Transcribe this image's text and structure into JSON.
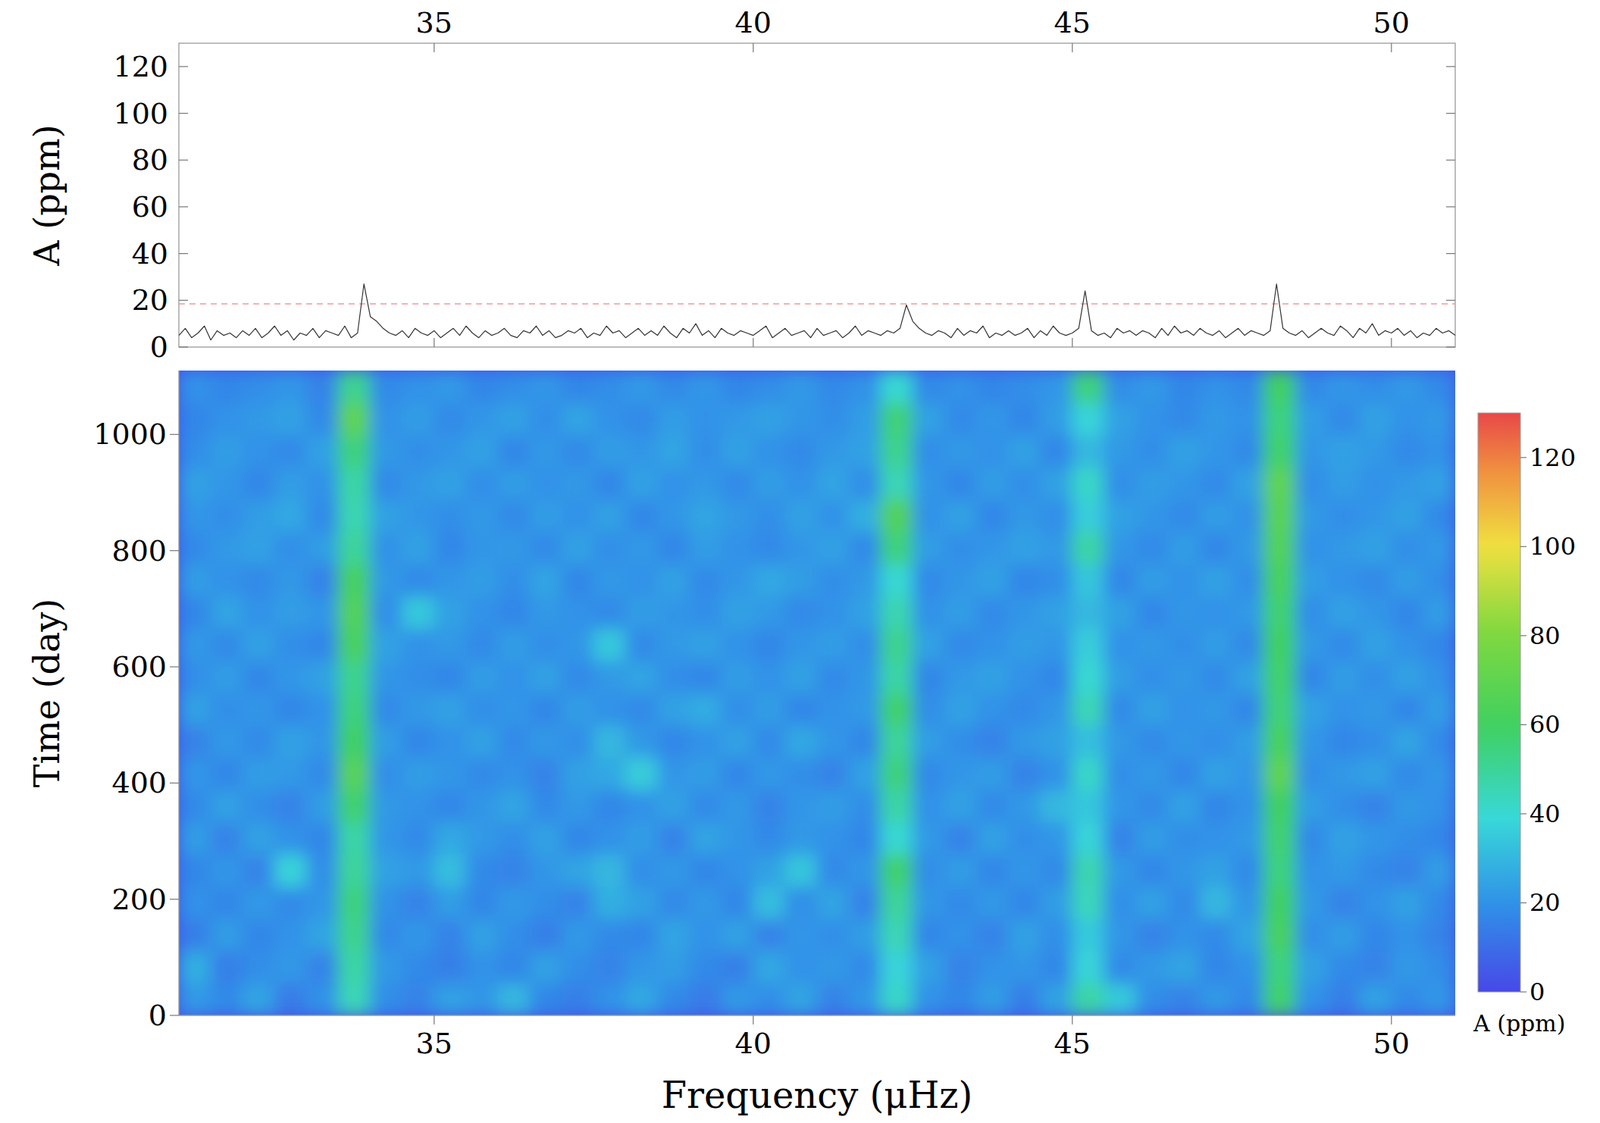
{
  "chart_data": [
    {
      "type": "line",
      "ylabel": "A (ppm)",
      "color": "#333333",
      "threshold": 18.5,
      "threshold_color": "#f09a9a",
      "line_style": "solid",
      "tick_labels": true,
      "xlim": [
        31,
        51
      ],
      "ylim": [
        0,
        130
      ],
      "xticks": [
        35,
        40,
        45,
        50
      ],
      "yticks": [
        0,
        20,
        40,
        60,
        80,
        100,
        120
      ],
      "x": [
        31,
        31.1,
        31.2,
        31.3,
        31.4,
        31.5,
        31.6,
        31.7,
        31.8,
        31.9,
        32,
        32.1,
        32.2,
        32.3,
        32.4,
        32.5,
        32.6,
        32.7,
        32.8,
        32.9,
        33,
        33.1,
        33.2,
        33.3,
        33.4,
        33.5,
        33.6,
        33.7,
        33.8,
        33.9,
        34,
        34.1,
        34.2,
        34.3,
        34.4,
        34.5,
        34.6,
        34.7,
        34.8,
        34.9,
        35,
        35.1,
        35.2,
        35.3,
        35.4,
        35.5,
        35.6,
        35.7,
        35.8,
        35.9,
        36,
        36.1,
        36.2,
        36.3,
        36.4,
        36.5,
        36.6,
        36.7,
        36.8,
        36.9,
        37,
        37.1,
        37.2,
        37.3,
        37.4,
        37.5,
        37.6,
        37.7,
        37.8,
        37.9,
        38,
        38.1,
        38.2,
        38.3,
        38.4,
        38.5,
        38.6,
        38.7,
        38.8,
        38.9,
        39,
        39.1,
        39.2,
        39.3,
        39.4,
        39.5,
        39.6,
        39.7,
        39.8,
        39.9,
        40,
        40.1,
        40.2,
        40.3,
        40.4,
        40.5,
        40.6,
        40.7,
        40.8,
        40.9,
        41,
        41.1,
        41.2,
        41.3,
        41.4,
        41.5,
        41.6,
        41.7,
        41.8,
        41.9,
        42,
        42.1,
        42.2,
        42.3,
        42.4,
        42.5,
        42.6,
        42.7,
        42.8,
        42.9,
        43,
        43.1,
        43.2,
        43.3,
        43.4,
        43.5,
        43.6,
        43.7,
        43.8,
        43.9,
        44,
        44.1,
        44.2,
        44.3,
        44.4,
        44.5,
        44.6,
        44.7,
        44.8,
        44.9,
        45,
        45.1,
        45.2,
        45.3,
        45.4,
        45.5,
        45.6,
        45.7,
        45.8,
        45.9,
        46,
        46.1,
        46.2,
        46.3,
        46.4,
        46.5,
        46.6,
        46.7,
        46.8,
        46.9,
        47,
        47.1,
        47.2,
        47.3,
        47.4,
        47.5,
        47.6,
        47.7,
        47.8,
        47.9,
        48,
        48.1,
        48.2,
        48.3,
        48.4,
        48.5,
        48.6,
        48.7,
        48.8,
        48.9,
        49,
        49.1,
        49.2,
        49.3,
        49.4,
        49.5,
        49.6,
        49.7,
        49.8,
        49.9,
        50,
        50.1,
        50.2,
        50.3,
        50.4,
        50.5,
        50.6,
        50.7,
        50.8,
        50.9,
        51
      ],
      "values": [
        5,
        8,
        4,
        6,
        9,
        3,
        7,
        5,
        6,
        4,
        7,
        5,
        8,
        4,
        6,
        9,
        5,
        7,
        3,
        6,
        5,
        8,
        4,
        7,
        6,
        5,
        9,
        4,
        6,
        27,
        13,
        11,
        8,
        6,
        5,
        7,
        4,
        8,
        6,
        5,
        7,
        4,
        6,
        8,
        5,
        9,
        6,
        4,
        7,
        5,
        6,
        8,
        5,
        4,
        7,
        6,
        9,
        5,
        7,
        4,
        5,
        7,
        6,
        8,
        4,
        6,
        5,
        9,
        6,
        7,
        4,
        6,
        8,
        5,
        7,
        5,
        9,
        6,
        4,
        8,
        6,
        10,
        5,
        7,
        4,
        8,
        6,
        5,
        7,
        6,
        5,
        7,
        9,
        4,
        6,
        8,
        5,
        6,
        7,
        4,
        8,
        5,
        6,
        7,
        4,
        6,
        9,
        5,
        7,
        6,
        5,
        7,
        6,
        8,
        18,
        11,
        8,
        6,
        5,
        7,
        6,
        4,
        8,
        5,
        7,
        6,
        9,
        4,
        6,
        5,
        7,
        5,
        6,
        8,
        4,
        7,
        5,
        9,
        6,
        5,
        6,
        8,
        24,
        7,
        5,
        6,
        4,
        8,
        6,
        7,
        5,
        7,
        6,
        4,
        8,
        5,
        9,
        6,
        7,
        5,
        8,
        6,
        5,
        7,
        4,
        6,
        8,
        5,
        7,
        6,
        5,
        7,
        27,
        8,
        6,
        5,
        7,
        4,
        6,
        8,
        6,
        5,
        9,
        7,
        4,
        8,
        6,
        10,
        5,
        7,
        6,
        8,
        5,
        7,
        4,
        6,
        5,
        8,
        6,
        7,
        5
      ]
    },
    {
      "type": "heatmap",
      "xlabel": "Frequency (μHz)",
      "ylabel": "Time (day)",
      "xlim": [
        31,
        51
      ],
      "ylim": [
        0,
        1110
      ],
      "xticks": [
        35,
        40,
        45,
        50
      ],
      "yticks": [
        0,
        200,
        400,
        600,
        800,
        1000
      ],
      "colorbar_range": [
        0,
        130
      ],
      "colorbar_ticks": [
        0,
        20,
        40,
        60,
        80,
        100,
        120
      ],
      "colorbar_label": "A (ppm)",
      "z": [
        [
          22,
          18,
          25,
          14,
          20,
          45,
          19,
          16,
          24,
          21,
          30,
          17,
          15,
          20,
          26,
          18,
          14,
          22,
          19,
          25,
          16,
          21,
          42,
          20,
          17,
          23,
          15,
          24,
          48,
          35,
          19,
          16,
          22,
          18,
          58,
          20,
          15,
          24,
          18,
          21
        ],
        [
          28,
          15,
          19,
          22,
          16,
          48,
          22,
          18,
          15,
          20,
          17,
          24,
          19,
          16,
          21,
          23,
          18,
          15,
          26,
          20,
          22,
          18,
          38,
          24,
          16,
          20,
          21,
          17,
          38,
          18,
          22,
          25,
          17,
          20,
          55,
          24,
          18,
          16,
          22,
          19
        ],
        [
          15,
          23,
          17,
          20,
          25,
          52,
          18,
          21,
          16,
          24,
          19,
          15,
          22,
          18,
          17,
          25,
          20,
          24,
          16,
          21,
          19,
          23,
          45,
          17,
          20,
          16,
          24,
          19,
          35,
          21,
          16,
          20,
          18,
          25,
          62,
          19,
          23,
          17,
          20,
          16
        ],
        [
          20,
          17,
          22,
          18,
          21,
          55,
          20,
          16,
          23,
          17,
          22,
          19,
          16,
          28,
          24,
          18,
          22,
          17,
          32,
          19,
          25,
          16,
          50,
          21,
          18,
          22,
          17,
          23,
          44,
          19,
          24,
          18,
          30,
          21,
          60,
          22,
          16,
          20,
          24,
          18
        ],
        [
          17,
          21,
          16,
          38,
          19,
          50,
          24,
          22,
          32,
          18,
          16,
          21,
          25,
          30,
          19,
          22,
          17,
          20,
          24,
          34,
          18,
          21,
          58,
          19,
          23,
          17,
          21,
          18,
          46,
          22,
          17,
          21,
          24,
          18,
          55,
          20,
          22,
          18,
          16,
          23
        ],
        [
          23,
          16,
          24,
          20,
          17,
          48,
          21,
          18,
          26,
          22,
          19,
          24,
          17,
          20,
          23,
          16,
          25,
          21,
          18,
          22,
          20,
          17,
          40,
          22,
          16,
          24,
          19,
          21,
          38,
          16,
          23,
          19,
          20,
          22,
          57,
          18,
          24,
          21,
          19,
          17
        ],
        [
          18,
          24,
          19,
          16,
          23,
          58,
          22,
          20,
          17,
          21,
          25,
          18,
          22,
          17,
          20,
          24,
          18,
          22,
          16,
          21,
          23,
          19,
          48,
          20,
          24,
          18,
          22,
          30,
          34,
          21,
          18,
          24,
          17,
          20,
          60,
          23,
          19,
          16,
          22,
          20
        ],
        [
          21,
          17,
          23,
          22,
          18,
          68,
          19,
          23,
          21,
          18,
          20,
          16,
          24,
          26,
          36,
          21,
          23,
          17,
          22,
          19,
          16,
          24,
          55,
          18,
          21,
          23,
          16,
          20,
          42,
          19,
          22,
          17,
          24,
          21,
          70,
          19,
          22,
          24,
          18,
          21
        ],
        [
          16,
          22,
          18,
          24,
          21,
          60,
          23,
          17,
          20,
          24,
          18,
          22,
          19,
          30,
          22,
          17,
          20,
          24,
          18,
          26,
          21,
          17,
          50,
          23,
          19,
          16,
          22,
          24,
          32,
          22,
          18,
          21,
          19,
          23,
          62,
          21,
          17,
          19,
          25,
          18
        ],
        [
          24,
          19,
          21,
          17,
          20,
          55,
          18,
          22,
          24,
          19,
          21,
          17,
          23,
          20,
          18,
          24,
          27,
          19,
          23,
          17,
          20,
          22,
          58,
          19,
          24,
          20,
          18,
          21,
          45,
          18,
          24,
          20,
          22,
          17,
          56,
          24,
          20,
          22,
          17,
          23
        ],
        [
          19,
          23,
          17,
          21,
          24,
          52,
          21,
          19,
          17,
          23,
          20,
          24,
          18,
          22,
          25,
          19,
          17,
          23,
          20,
          24,
          18,
          21,
          48,
          17,
          22,
          24,
          20,
          17,
          40,
          23,
          19,
          22,
          18,
          24,
          58,
          17,
          23,
          19,
          24,
          20
        ],
        [
          22,
          18,
          24,
          19,
          17,
          63,
          24,
          20,
          22,
          18,
          23,
          19,
          21,
          35,
          18,
          22,
          24,
          20,
          17,
          21,
          23,
          19,
          52,
          24,
          18,
          20,
          23,
          21,
          36,
          20,
          22,
          19,
          23,
          18,
          60,
          22,
          18,
          24,
          20,
          17
        ],
        [
          17,
          25,
          20,
          23,
          21,
          66,
          19,
          35,
          24,
          20,
          17,
          22,
          20,
          18,
          23,
          21,
          19,
          24,
          22,
          18,
          20,
          24,
          46,
          20,
          23,
          18,
          21,
          24,
          30,
          24,
          17,
          21,
          20,
          22,
          57,
          19,
          24,
          21,
          17,
          23
        ],
        [
          23,
          20,
          18,
          22,
          16,
          62,
          22,
          18,
          21,
          23,
          19,
          25,
          17,
          22,
          20,
          24,
          18,
          21,
          26,
          23,
          19,
          22,
          40,
          18,
          21,
          24,
          17,
          19,
          34,
          17,
          23,
          20,
          24,
          19,
          62,
          23,
          20,
          18,
          23,
          19
        ],
        [
          18,
          22,
          24,
          19,
          23,
          50,
          20,
          24,
          17,
          21,
          22,
          18,
          24,
          19,
          22,
          17,
          23,
          20,
          18,
          21,
          24,
          18,
          55,
          23,
          19,
          21,
          24,
          22,
          48,
          21,
          18,
          23,
          17,
          22,
          66,
          20,
          22,
          24,
          19,
          22
        ],
        [
          21,
          19,
          23,
          26,
          18,
          46,
          24,
          21,
          19,
          22,
          18,
          23,
          20,
          24,
          17,
          21,
          25,
          22,
          19,
          24,
          20,
          28,
          66,
          20,
          24,
          17,
          22,
          19,
          36,
          24,
          21,
          18,
          23,
          20,
          68,
          22,
          19,
          21,
          24,
          18
        ],
        [
          24,
          21,
          17,
          23,
          20,
          48,
          18,
          22,
          24,
          19,
          23,
          20,
          22,
          17,
          24,
          20,
          22,
          18,
          23,
          20,
          25,
          19,
          45,
          21,
          17,
          23,
          19,
          24,
          42,
          19,
          23,
          21,
          18,
          24,
          70,
          19,
          23,
          20,
          22,
          24
        ],
        [
          19,
          23,
          20,
          18,
          24,
          55,
          22,
          19,
          21,
          24,
          17,
          22,
          18,
          23,
          21,
          25,
          19,
          24,
          20,
          18,
          22,
          24,
          52,
          19,
          22,
          20,
          24,
          17,
          30,
          22,
          19,
          24,
          21,
          18,
          58,
          21,
          24,
          22,
          18,
          20
        ],
        [
          17,
          20,
          22,
          24,
          18,
          70,
          20,
          23,
          18,
          21,
          24,
          19,
          25,
          20,
          18,
          23,
          20,
          22,
          24,
          21,
          19,
          23,
          56,
          24,
          18,
          21,
          17,
          23,
          38,
          24,
          20,
          18,
          22,
          20,
          55,
          23,
          18,
          24,
          20,
          22
        ],
        [
          20,
          17,
          19,
          21,
          16,
          52,
          18,
          20,
          22,
          17,
          19,
          21,
          17,
          19,
          22,
          18,
          21,
          17,
          19,
          22,
          18,
          20,
          40,
          18,
          20,
          17,
          19,
          21,
          55,
          19,
          22,
          17,
          20,
          18,
          60,
          18,
          21,
          19,
          22,
          18
        ]
      ]
    }
  ]
}
